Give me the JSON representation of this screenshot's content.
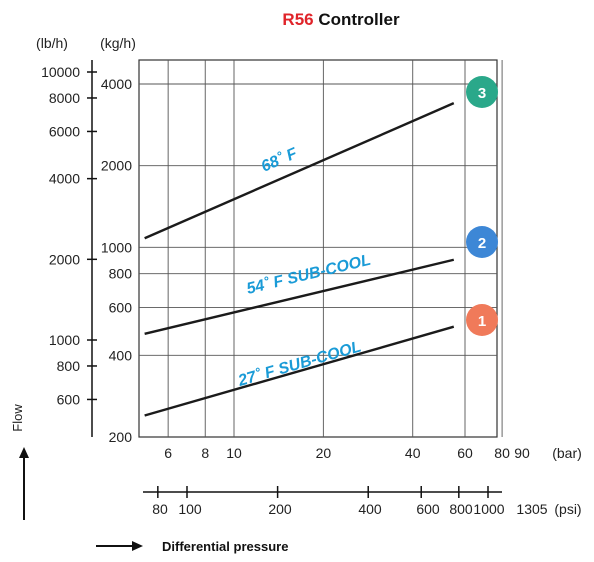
{
  "title": {
    "model": "R56",
    "rest": " Controller",
    "model_color": "#e0242a"
  },
  "chart_data": {
    "type": "line",
    "x_scale": "log",
    "y_scale": "log",
    "xlabel": "Differential pressure",
    "ylabel": "Flow",
    "x_unit": "(bar)",
    "x_unit_alt": "(psi)",
    "y_unit": "(kg/h)",
    "y_unit_alt": "(lb/h)",
    "xlim": [
      5,
      90
    ],
    "ylim": [
      200,
      5000
    ],
    "x_ticks": [
      6,
      8,
      10,
      20,
      40,
      60,
      80,
      90
    ],
    "x_ticks_alt": [
      80,
      100,
      200,
      400,
      600,
      800,
      1000,
      1305
    ],
    "y_ticks": [
      200,
      400,
      600,
      800,
      1000,
      2000,
      4000
    ],
    "y_ticks_alt": [
      600,
      800,
      1000,
      2000,
      4000,
      6000,
      8000,
      10000
    ],
    "grid": true,
    "series": [
      {
        "name": "27˚ F SUB-COOL",
        "badge": "1",
        "badge_color": "#f07a5a",
        "x": [
          5,
          55
        ],
        "y": [
          240,
          510
        ]
      },
      {
        "name": "54˚ F SUB-COOL",
        "badge": "2",
        "badge_color": "#3d87d6",
        "x": [
          5,
          55
        ],
        "y": [
          480,
          900
        ]
      },
      {
        "name": "68˚ F",
        "badge": "3",
        "badge_color": "#2aa88a",
        "x": [
          5,
          55
        ],
        "y": [
          1080,
          3400
        ]
      }
    ]
  }
}
